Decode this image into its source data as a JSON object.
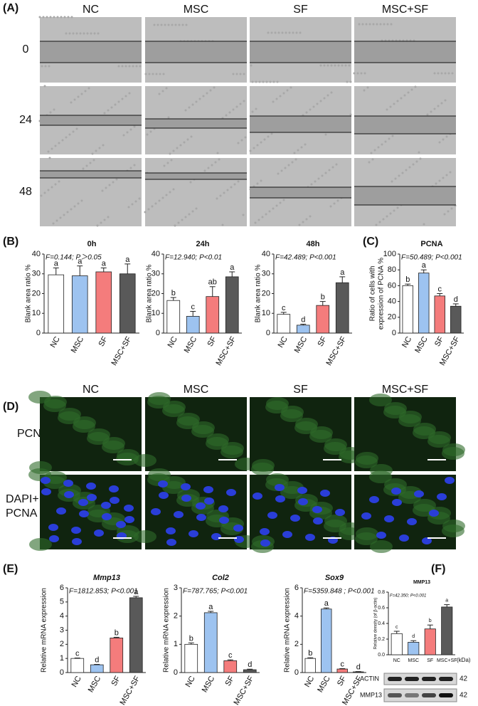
{
  "figure": {
    "panel_labels": [
      "(A)",
      "(B)",
      "(C)",
      "(D)",
      "(E)",
      "(F)"
    ],
    "a_columns": [
      "NC",
      "MSC",
      "SF",
      "MSC+SF"
    ],
    "a_rows": [
      "0",
      "24",
      "48"
    ],
    "d_columns": [
      "NC",
      "MSC",
      "SF",
      "MSC+SF"
    ],
    "d_row1": "PCNA",
    "d_row2": [
      "DAPI+",
      "PCNA"
    ],
    "blot_unit": "(kDa)",
    "blots": [
      {
        "label": "ACTIN",
        "size": "42"
      },
      {
        "label": "MMP13",
        "size": "42"
      }
    ]
  },
  "chart_data": [
    {
      "type": "bar",
      "title": "0h",
      "stat": "F=0.144;  P＞0.05",
      "ylabel": "Blank area ratio %",
      "categories": [
        "NC",
        "MSC",
        "SF",
        "MSC+SF"
      ],
      "values": [
        29.5,
        29,
        31,
        30
      ],
      "errors": [
        3.5,
        5,
        2,
        5
      ],
      "letters": [
        "a",
        "a",
        "a",
        "a"
      ],
      "colors": [
        "#ffffff",
        "#9dc3f0",
        "#f47c7c",
        "#595959"
      ],
      "ylim": [
        0,
        40
      ],
      "yticks": [
        0,
        10,
        20,
        30,
        40
      ]
    },
    {
      "type": "bar",
      "title": "24h",
      "stat": "F=12.940;  P<0.01",
      "ylabel": "Blank area ratio %",
      "categories": [
        "NC",
        "MSC",
        "SF",
        "MSC+SF"
      ],
      "values": [
        16.5,
        8.5,
        18.5,
        28.5
      ],
      "errors": [
        1.5,
        2.5,
        5,
        2.5
      ],
      "letters": [
        "b",
        "c",
        "ab",
        "a"
      ],
      "colors": [
        "#ffffff",
        "#9dc3f0",
        "#f47c7c",
        "#595959"
      ],
      "ylim": [
        0,
        40
      ],
      "yticks": [
        0,
        10,
        20,
        30,
        40
      ]
    },
    {
      "type": "bar",
      "title": "48h",
      "stat": "F=42.489;  P<0.001",
      "ylabel": "Blank area ratio %",
      "categories": [
        "NC",
        "MSC",
        "SF",
        "MSC+SF"
      ],
      "values": [
        9.5,
        4,
        14,
        25.5
      ],
      "errors": [
        1,
        0.5,
        2,
        3
      ],
      "letters": [
        "c",
        "d",
        "b",
        "a"
      ],
      "colors": [
        "#ffffff",
        "#9dc3f0",
        "#f47c7c",
        "#595959"
      ],
      "ylim": [
        0,
        40
      ],
      "yticks": [
        0,
        10,
        20,
        30,
        40
      ]
    },
    {
      "type": "bar",
      "title": "PCNA",
      "stat": "F=50.489;  P<0.001",
      "ylabel": [
        "Ratio of cells with",
        "expression of PCNA %"
      ],
      "categories": [
        "NC",
        "MSC",
        "SF",
        "MSC+SF"
      ],
      "values": [
        60,
        76,
        47,
        34
      ],
      "errors": [
        2,
        4,
        3,
        3
      ],
      "letters": [
        "b",
        "a",
        "c",
        "d"
      ],
      "colors": [
        "#ffffff",
        "#9dc3f0",
        "#f47c7c",
        "#595959"
      ],
      "ylim": [
        0,
        100
      ],
      "yticks": [
        0,
        20,
        40,
        60,
        80,
        100
      ]
    },
    {
      "type": "bar",
      "title": "Mmp13",
      "stat": "F=1812.853;  P<0.001",
      "ylabel": "Relative mRNA expression",
      "categories": [
        "NC",
        "MSC",
        "SF",
        "MSC+SF"
      ],
      "values": [
        1.0,
        0.55,
        2.45,
        5.3
      ],
      "errors": [
        0.03,
        0.03,
        0.05,
        0.1
      ],
      "letters": [
        "c",
        "d",
        "b",
        "a"
      ],
      "colors": [
        "#ffffff",
        "#9dc3f0",
        "#f47c7c",
        "#595959"
      ],
      "ylim": [
        0,
        6
      ],
      "yticks": [
        0,
        1,
        2,
        3,
        4,
        5,
        6
      ]
    },
    {
      "type": "bar",
      "title": "Col2",
      "stat": "F=787.765;  P<0.001",
      "ylabel": "Relative mRNA expression",
      "categories": [
        "NC",
        "MSC",
        "SF",
        "MSC+SF"
      ],
      "values": [
        1.0,
        2.12,
        0.42,
        0.1
      ],
      "errors": [
        0.05,
        0.05,
        0.03,
        0.02
      ],
      "letters": [
        "b",
        "a",
        "c",
        "d"
      ],
      "colors": [
        "#ffffff",
        "#9dc3f0",
        "#f47c7c",
        "#595959"
      ],
      "ylim": [
        0,
        3
      ],
      "yticks": [
        0,
        1,
        2,
        3
      ]
    },
    {
      "type": "bar",
      "title": "Sox9",
      "stat": "F=5359.848 ; P<0.001",
      "ylabel": "Relative mRNA expression",
      "categories": [
        "NC",
        "MSC",
        "SF",
        "MSC+SF"
      ],
      "values": [
        1.0,
        4.5,
        0.25,
        0.05
      ],
      "errors": [
        0.05,
        0.08,
        0.03,
        0.02
      ],
      "letters": [
        "b",
        "a",
        "c",
        "d"
      ],
      "colors": [
        "#ffffff",
        "#9dc3f0",
        "#f47c7c",
        "#595959"
      ],
      "ylim": [
        0,
        6
      ],
      "yticks": [
        0,
        2,
        4,
        6
      ]
    },
    {
      "type": "bar",
      "title": "MMP13",
      "stat": "F=42.350; P<0.001",
      "ylabel": "Relative density (of β-actin)",
      "categories": [
        "NC",
        "MSC",
        "SF",
        "MSC+SF"
      ],
      "values": [
        0.27,
        0.16,
        0.33,
        0.61
      ],
      "errors": [
        0.03,
        0.02,
        0.05,
        0.03
      ],
      "letters": [
        "c",
        "d",
        "b",
        "a"
      ],
      "colors": [
        "#ffffff",
        "#9dc3f0",
        "#f47c7c",
        "#595959"
      ],
      "ylim": [
        0,
        0.8
      ],
      "yticks": [
        {
          "value": 0,
          "label": "0.0"
        },
        0.2,
        0.4,
        0.6,
        0.8
      ]
    }
  ]
}
